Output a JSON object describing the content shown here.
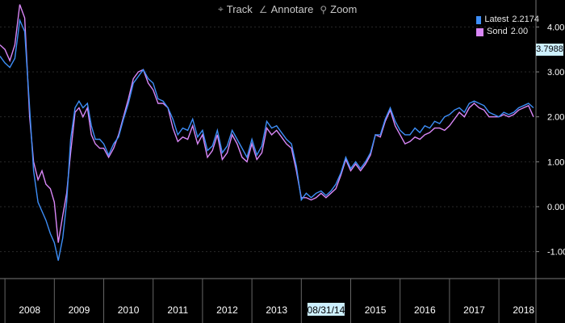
{
  "toolbar": {
    "track_label": "Track",
    "annotate_label": "Annotare",
    "zoom_label": "Zoom",
    "track_icon": "crosshair-icon",
    "annotate_icon": "pencil-icon",
    "zoom_icon": "magnifier-icon"
  },
  "legend": {
    "latest_label": "Latest",
    "latest_value": "2.2174",
    "sond_label": "Sond",
    "sond_value": "2.00"
  },
  "current_value_flag": "3.7988",
  "colors": {
    "background": "#000000",
    "latest": "#3d8ef7",
    "sond": "#d987f7",
    "grid": "#2a2a2a",
    "axis_text": "#ffffff",
    "highlight_bg": "#cdf0ff"
  },
  "chart_data": {
    "type": "line",
    "ylim": [
      -1.6,
      4.6
    ],
    "yticks": [
      "-1.00",
      "0.00",
      "1.00",
      "2.00",
      "3.00",
      "4.00"
    ],
    "xlim": [
      2007.9,
      2018.75
    ],
    "x_tick_labels": [
      "2008",
      "2009",
      "2010",
      "2011",
      "2012",
      "2013",
      "08/31/14",
      "2015",
      "2016",
      "2017",
      "2018"
    ],
    "highlighted_x_label": "08/31/14",
    "series": [
      {
        "name": "Latest",
        "x": [
          2007.9,
          2008.0,
          2008.1,
          2008.2,
          2008.3,
          2008.4,
          2008.5,
          2008.58,
          2008.67,
          2008.75,
          2008.83,
          2008.92,
          2009.0,
          2009.08,
          2009.17,
          2009.25,
          2009.33,
          2009.42,
          2009.5,
          2009.58,
          2009.67,
          2009.75,
          2009.83,
          2009.92,
          2010.0,
          2010.1,
          2010.2,
          2010.3,
          2010.4,
          2010.5,
          2010.6,
          2010.7,
          2010.8,
          2010.9,
          2011.0,
          2011.1,
          2011.2,
          2011.3,
          2011.4,
          2011.5,
          2011.6,
          2011.7,
          2011.8,
          2011.9,
          2012.0,
          2012.1,
          2012.2,
          2012.3,
          2012.4,
          2012.5,
          2012.6,
          2012.7,
          2012.8,
          2012.9,
          2013.0,
          2013.1,
          2013.2,
          2013.3,
          2013.4,
          2013.5,
          2013.6,
          2013.7,
          2013.8,
          2013.9,
          2014.0,
          2014.1,
          2014.2,
          2014.3,
          2014.4,
          2014.5,
          2014.6,
          2014.7,
          2014.8,
          2014.9,
          2015.0,
          2015.1,
          2015.2,
          2015.3,
          2015.4,
          2015.5,
          2015.6,
          2015.7,
          2015.8,
          2015.9,
          2016.0,
          2016.1,
          2016.2,
          2016.3,
          2016.4,
          2016.5,
          2016.6,
          2016.7,
          2016.8,
          2016.9,
          2017.0,
          2017.1,
          2017.2,
          2017.3,
          2017.4,
          2017.5,
          2017.6,
          2017.7,
          2017.8,
          2017.9,
          2018.0,
          2018.1,
          2018.2,
          2018.3,
          2018.4,
          2018.5,
          2018.6,
          2018.7
        ],
        "y": [
          3.35,
          3.2,
          3.1,
          3.3,
          4.15,
          3.9,
          2.2,
          0.8,
          0.1,
          -0.1,
          -0.3,
          -0.6,
          -0.8,
          -1.2,
          -0.7,
          0.1,
          1.5,
          2.2,
          2.35,
          2.2,
          2.3,
          1.8,
          1.5,
          1.5,
          1.4,
          1.15,
          1.4,
          1.55,
          1.95,
          2.3,
          2.75,
          2.9,
          3.05,
          2.85,
          2.75,
          2.4,
          2.35,
          2.2,
          1.95,
          1.6,
          1.75,
          1.7,
          1.95,
          1.55,
          1.7,
          1.25,
          1.35,
          1.7,
          1.2,
          1.35,
          1.7,
          1.5,
          1.3,
          1.1,
          1.5,
          1.15,
          1.35,
          1.9,
          1.75,
          1.8,
          1.65,
          1.5,
          1.4,
          0.9,
          0.15,
          0.3,
          0.2,
          0.3,
          0.35,
          0.25,
          0.35,
          0.5,
          0.75,
          1.1,
          0.85,
          1.0,
          0.85,
          1.0,
          1.2,
          1.6,
          1.6,
          1.95,
          2.2,
          1.9,
          1.7,
          1.6,
          1.6,
          1.75,
          1.65,
          1.8,
          1.75,
          1.9,
          1.85,
          2.0,
          2.05,
          2.15,
          2.2,
          2.1,
          2.3,
          2.35,
          2.3,
          2.25,
          2.1,
          2.05,
          2.0,
          2.1,
          2.05,
          2.1,
          2.2,
          2.25,
          2.3,
          2.2
        ]
      },
      {
        "name": "Sond",
        "x": [
          2007.9,
          2008.0,
          2008.1,
          2008.2,
          2008.3,
          2008.4,
          2008.5,
          2008.58,
          2008.67,
          2008.75,
          2008.83,
          2008.92,
          2009.0,
          2009.08,
          2009.17,
          2009.25,
          2009.33,
          2009.42,
          2009.5,
          2009.58,
          2009.67,
          2009.75,
          2009.83,
          2009.92,
          2010.0,
          2010.1,
          2010.2,
          2010.3,
          2010.4,
          2010.5,
          2010.6,
          2010.7,
          2010.8,
          2010.9,
          2011.0,
          2011.1,
          2011.2,
          2011.3,
          2011.4,
          2011.5,
          2011.6,
          2011.7,
          2011.8,
          2011.9,
          2012.0,
          2012.1,
          2012.2,
          2012.3,
          2012.4,
          2012.5,
          2012.6,
          2012.7,
          2012.8,
          2012.9,
          2013.0,
          2013.1,
          2013.2,
          2013.3,
          2013.4,
          2013.5,
          2013.6,
          2013.7,
          2013.8,
          2013.9,
          2014.0,
          2014.1,
          2014.2,
          2014.3,
          2014.4,
          2014.5,
          2014.6,
          2014.7,
          2014.8,
          2014.9,
          2015.0,
          2015.1,
          2015.2,
          2015.3,
          2015.4,
          2015.5,
          2015.6,
          2015.7,
          2015.8,
          2015.9,
          2016.0,
          2016.1,
          2016.2,
          2016.3,
          2016.4,
          2016.5,
          2016.6,
          2016.7,
          2016.8,
          2016.9,
          2017.0,
          2017.1,
          2017.2,
          2017.3,
          2017.4,
          2017.5,
          2017.6,
          2017.7,
          2017.8,
          2017.9,
          2018.0,
          2018.1,
          2018.2,
          2018.3,
          2018.4,
          2018.5,
          2018.6,
          2018.7
        ],
        "y": [
          3.6,
          3.5,
          3.25,
          3.6,
          4.5,
          4.2,
          2.0,
          1.0,
          0.6,
          0.8,
          0.5,
          0.4,
          0.1,
          -0.8,
          -0.2,
          0.3,
          1.2,
          2.1,
          2.2,
          2.0,
          2.2,
          1.6,
          1.4,
          1.3,
          1.3,
          1.1,
          1.3,
          1.6,
          2.0,
          2.4,
          2.85,
          3.0,
          3.05,
          2.75,
          2.6,
          2.3,
          2.3,
          2.2,
          1.75,
          1.45,
          1.55,
          1.5,
          1.8,
          1.4,
          1.6,
          1.1,
          1.25,
          1.6,
          1.05,
          1.2,
          1.6,
          1.4,
          1.1,
          1.0,
          1.4,
          1.05,
          1.2,
          1.75,
          1.6,
          1.7,
          1.55,
          1.4,
          1.3,
          0.8,
          0.2,
          0.2,
          0.15,
          0.2,
          0.3,
          0.2,
          0.3,
          0.4,
          0.7,
          1.05,
          0.8,
          0.95,
          0.8,
          0.95,
          1.15,
          1.6,
          1.55,
          1.9,
          2.15,
          1.8,
          1.6,
          1.4,
          1.45,
          1.55,
          1.5,
          1.6,
          1.65,
          1.75,
          1.75,
          1.7,
          1.8,
          1.95,
          2.1,
          2.0,
          2.2,
          2.3,
          2.2,
          2.15,
          2.0,
          2.0,
          2.0,
          2.05,
          2.0,
          2.05,
          2.15,
          2.2,
          2.25,
          2.0
        ]
      }
    ]
  }
}
